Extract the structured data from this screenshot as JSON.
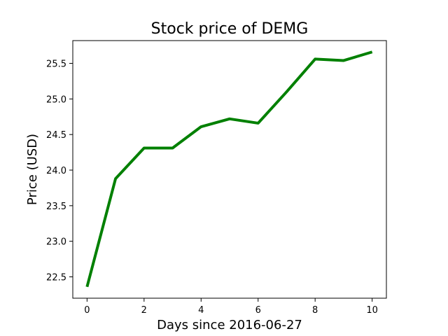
{
  "chart_data": {
    "type": "line",
    "title": "Stock price of DEMG",
    "xlabel": "Days since 2016-06-27",
    "ylabel": "Price (USD)",
    "x": [
      0,
      1,
      2,
      3,
      4,
      5,
      6,
      7,
      8,
      9,
      10
    ],
    "series": [
      {
        "values": [
          22.36,
          23.88,
          24.31,
          24.31,
          24.61,
          24.72,
          24.66,
          25.1,
          25.56,
          25.54,
          25.66
        ],
        "color": "#008000"
      }
    ],
    "xlim": [
      -0.5,
      10.5
    ],
    "ylim": [
      22.2,
      25.82
    ],
    "xticks": [
      0,
      2,
      4,
      6,
      8,
      10
    ],
    "xtick_labels": [
      "0",
      "2",
      "4",
      "6",
      "8",
      "10"
    ],
    "yticks": [
      22.5,
      23.0,
      23.5,
      24.0,
      24.5,
      25.0,
      25.5
    ],
    "ytick_labels": [
      "22.5",
      "23.0",
      "23.5",
      "24.0",
      "24.5",
      "25.0",
      "25.5"
    ],
    "grid": false,
    "legend": "none"
  }
}
